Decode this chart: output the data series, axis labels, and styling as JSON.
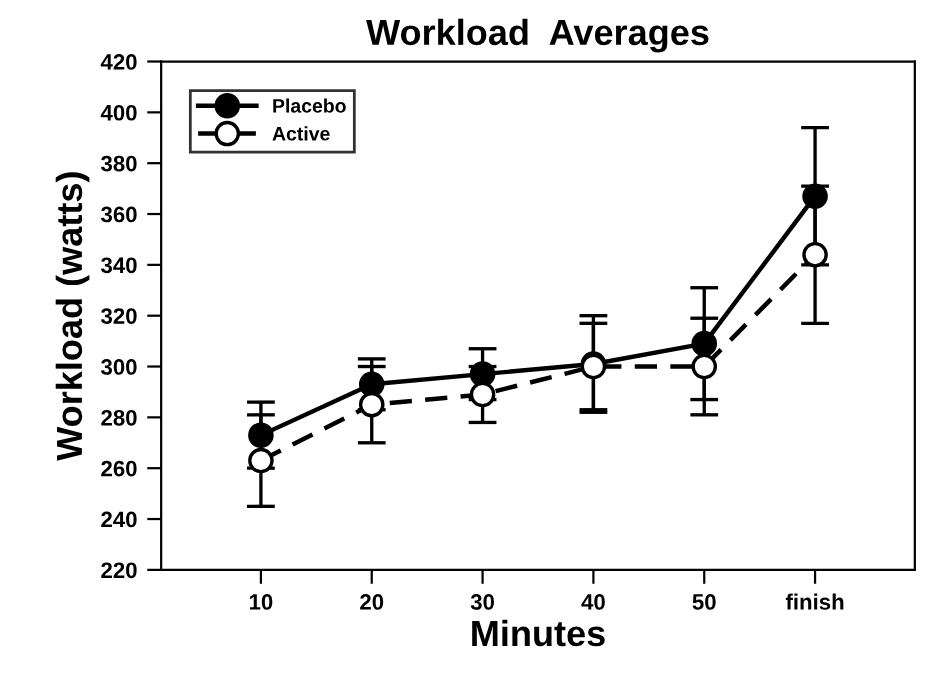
{
  "chart_data": {
    "type": "line",
    "title": "Workload  Averages",
    "xlabel": "Minutes",
    "ylabel": "Workload (watts)",
    "categories": [
      "10",
      "20",
      "30",
      "40",
      "50",
      "finish"
    ],
    "series": [
      {
        "name": "Placebo",
        "color": "#000000",
        "values": [
          273,
          293,
          297,
          301,
          309,
          367
        ],
        "errors": [
          13,
          10,
          10,
          19,
          22,
          27
        ],
        "marker": "circle",
        "line_style": "solid"
      },
      {
        "name": "Active",
        "color": "#000000",
        "values": [
          263,
          285,
          289,
          300,
          300,
          344
        ],
        "errors": [
          18,
          15,
          11,
          17,
          19,
          27
        ],
        "marker": "circle",
        "line_style": "dashed"
      }
    ],
    "ylim": [
      220,
      420
    ],
    "yticks": [
      220,
      240,
      260,
      280,
      300,
      320,
      340,
      360,
      380,
      400,
      420
    ],
    "grid": false,
    "legend": "top left"
  }
}
